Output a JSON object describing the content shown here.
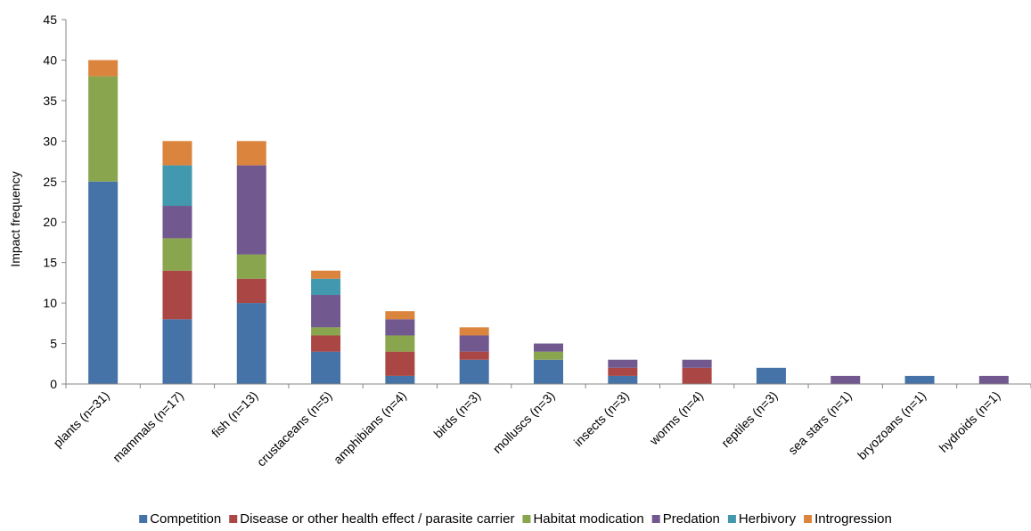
{
  "chart_data": {
    "type": "bar",
    "stacked": true,
    "title": "",
    "xlabel": "",
    "ylabel": "Impact frequency",
    "ylim": [
      0,
      45
    ],
    "yticks": [
      0,
      5,
      10,
      15,
      20,
      25,
      30,
      35,
      40,
      45
    ],
    "grid": false,
    "legend_position": "bottom",
    "categories": [
      "plants (n=31)",
      "mammals (n=17)",
      "fish (n=13)",
      "crustaceans (n=5)",
      "amphibians (n=4)",
      "birds (n=3)",
      "molluscs (n=3)",
      "insects (n=3)",
      "worms (n=4)",
      "reptiles (n=3)",
      "sea stars (n=1)",
      "bryozoans (n=1)",
      "hydroids (n=1)"
    ],
    "series": [
      {
        "name": "Competition",
        "color": "#4572A7",
        "values": [
          25,
          8,
          10,
          4,
          1,
          3,
          3,
          1,
          0,
          2,
          0,
          1,
          0
        ]
      },
      {
        "name": "Disease or other health effect / parasite carrier",
        "color": "#AA4643",
        "values": [
          0,
          6,
          3,
          2,
          3,
          1,
          0,
          1,
          2,
          0,
          0,
          0,
          0
        ]
      },
      {
        "name": "Habitat modication",
        "color": "#89A54E",
        "values": [
          13,
          4,
          3,
          1,
          2,
          0,
          1,
          0,
          0,
          0,
          0,
          0,
          0
        ]
      },
      {
        "name": "Predation",
        "color": "#71588F",
        "values": [
          0,
          4,
          11,
          4,
          2,
          2,
          1,
          1,
          1,
          0,
          1,
          0,
          1
        ]
      },
      {
        "name": "Herbivory",
        "color": "#4198AF",
        "values": [
          0,
          5,
          0,
          2,
          0,
          0,
          0,
          0,
          0,
          0,
          0,
          0,
          0
        ]
      },
      {
        "name": "Introgression",
        "color": "#DB843D",
        "values": [
          2,
          3,
          3,
          1,
          1,
          1,
          0,
          0,
          0,
          0,
          0,
          0,
          0
        ]
      }
    ]
  }
}
